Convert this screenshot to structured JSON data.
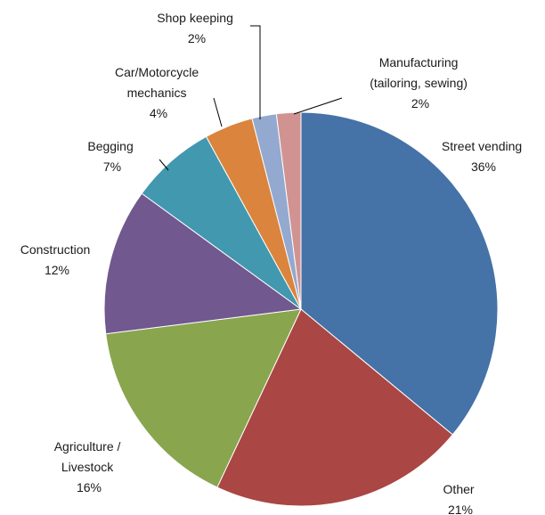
{
  "chart_data": {
    "type": "pie",
    "slices": [
      {
        "name": "Street vending",
        "value": 36,
        "pct_label": "36%",
        "color": "#4572A7"
      },
      {
        "name": "Other",
        "value": 21,
        "pct_label": "21%",
        "color": "#AA4643"
      },
      {
        "name": "Agriculture / Livestock",
        "value": 16,
        "pct_label": "16%",
        "color": "#89A54E"
      },
      {
        "name": "Construction",
        "value": 12,
        "pct_label": "12%",
        "color": "#71588F"
      },
      {
        "name": "Begging",
        "value": 7,
        "pct_label": "7%",
        "color": "#4198AF"
      },
      {
        "name": "Car/Motorcycle mechanics",
        "value": 4,
        "pct_label": "4%",
        "color": "#DB843D"
      },
      {
        "name": "Shop keeping",
        "value": 2,
        "pct_label": "2%",
        "color": "#93A9CF"
      },
      {
        "name": "Manufacturing (tailoring, sewing)",
        "value": 2,
        "pct_label": "2%",
        "color": "#D19392"
      }
    ]
  }
}
